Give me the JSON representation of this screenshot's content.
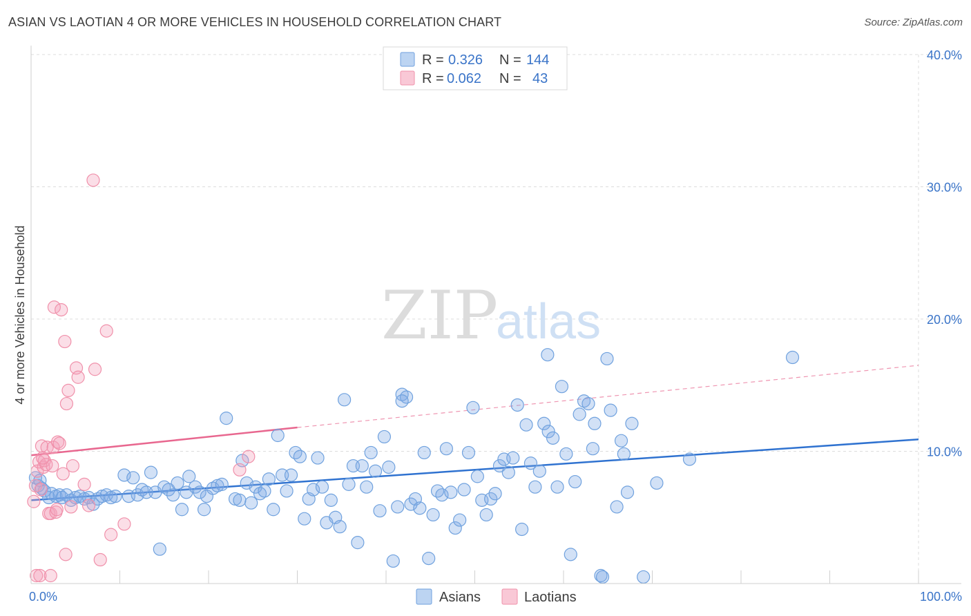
{
  "title": "ASIAN VS LAOTIAN 4 OR MORE VEHICLES IN HOUSEHOLD CORRELATION CHART",
  "source": "Source: ZipAtlas.com",
  "watermark": {
    "zip": "ZIP",
    "atlas": "atlas"
  },
  "legend": {
    "r_label": "R =",
    "n_label": "N =",
    "rows": [
      {
        "r": "0.326",
        "n": "144",
        "color": "#a9c8ee"
      },
      {
        "r": "0.062",
        "n": "43",
        "color": "#f6b9cc"
      }
    ]
  },
  "bottom_legend": [
    "Asians",
    "Laotians"
  ],
  "chart_data": {
    "type": "scatter",
    "title": "ASIAN VS LAOTIAN 4 OR MORE VEHICLES IN HOUSEHOLD CORRELATION CHART",
    "xlabel": "",
    "ylabel": "4 or more Vehicles in Household",
    "xlim": [
      0,
      100
    ],
    "ylim": [
      0,
      40
    ],
    "x_tick_labels": [
      "0.0%",
      "100.0%"
    ],
    "y_ticks": [
      10,
      20,
      30,
      40
    ],
    "y_tick_labels": [
      "10.0%",
      "20.0%",
      "30.0%",
      "40.0%"
    ],
    "grid": true,
    "legend_position": "top-center",
    "colors": {
      "asians": "#6fa1de",
      "laotians": "#f090aa",
      "asians_line": "#2f72d0",
      "laotians_line": "#e8678f"
    },
    "series": [
      {
        "name": "Asians",
        "trend": {
          "x": [
            0,
            100
          ],
          "y": [
            6.3,
            10.9
          ]
        },
        "points": [
          [
            0.5,
            8.0
          ],
          [
            0.8,
            7.4
          ],
          [
            1.0,
            7.8
          ],
          [
            1.2,
            7.2
          ],
          [
            1.5,
            7.0
          ],
          [
            2.0,
            6.5
          ],
          [
            2.3,
            6.8
          ],
          [
            2.8,
            6.6
          ],
          [
            3.2,
            6.7
          ],
          [
            3.5,
            6.5
          ],
          [
            4.0,
            6.7
          ],
          [
            4.5,
            6.3
          ],
          [
            5.0,
            6.5
          ],
          [
            5.5,
            6.6
          ],
          [
            6.0,
            6.4
          ],
          [
            6.5,
            6.5
          ],
          [
            7.0,
            6.0
          ],
          [
            7.5,
            6.4
          ],
          [
            8.0,
            6.6
          ],
          [
            8.5,
            6.7
          ],
          [
            9.0,
            6.5
          ],
          [
            9.5,
            6.6
          ],
          [
            10.5,
            8.2
          ],
          [
            11.0,
            6.6
          ],
          [
            11.5,
            8.0
          ],
          [
            12.0,
            6.7
          ],
          [
            12.5,
            7.1
          ],
          [
            13.0,
            6.9
          ],
          [
            13.5,
            8.4
          ],
          [
            14.0,
            6.9
          ],
          [
            14.5,
            2.6
          ],
          [
            15.0,
            7.3
          ],
          [
            15.5,
            7.1
          ],
          [
            16.0,
            6.7
          ],
          [
            16.5,
            7.6
          ],
          [
            17.0,
            5.6
          ],
          [
            17.5,
            6.9
          ],
          [
            17.8,
            8.1
          ],
          [
            18.5,
            7.3
          ],
          [
            19.0,
            6.9
          ],
          [
            19.5,
            5.6
          ],
          [
            19.8,
            6.6
          ],
          [
            20.5,
            7.2
          ],
          [
            21.0,
            7.4
          ],
          [
            21.5,
            7.5
          ],
          [
            22.0,
            12.5
          ],
          [
            23.0,
            6.4
          ],
          [
            23.5,
            6.3
          ],
          [
            23.8,
            9.3
          ],
          [
            24.3,
            7.6
          ],
          [
            24.8,
            6.1
          ],
          [
            25.3,
            7.3
          ],
          [
            25.8,
            6.8
          ],
          [
            26.3,
            7.0
          ],
          [
            26.8,
            7.9
          ],
          [
            27.3,
            5.6
          ],
          [
            27.8,
            11.2
          ],
          [
            28.3,
            8.2
          ],
          [
            28.8,
            7.0
          ],
          [
            29.3,
            8.2
          ],
          [
            29.8,
            9.9
          ],
          [
            30.3,
            9.6
          ],
          [
            30.8,
            4.9
          ],
          [
            31.3,
            6.4
          ],
          [
            31.8,
            7.1
          ],
          [
            32.3,
            9.5
          ],
          [
            32.8,
            7.3
          ],
          [
            33.3,
            4.6
          ],
          [
            33.8,
            6.3
          ],
          [
            34.3,
            5.0
          ],
          [
            34.8,
            4.3
          ],
          [
            35.3,
            13.9
          ],
          [
            35.8,
            7.5
          ],
          [
            36.3,
            8.9
          ],
          [
            36.8,
            3.1
          ],
          [
            37.3,
            8.9
          ],
          [
            37.8,
            7.3
          ],
          [
            38.3,
            9.9
          ],
          [
            38.8,
            8.5
          ],
          [
            39.3,
            5.5
          ],
          [
            39.8,
            11.1
          ],
          [
            40.3,
            8.8
          ],
          [
            40.8,
            1.7
          ],
          [
            41.3,
            5.8
          ],
          [
            41.8,
            14.3
          ],
          [
            42.3,
            14.1
          ],
          [
            42.8,
            6.0
          ],
          [
            43.3,
            6.4
          ],
          [
            43.8,
            5.7
          ],
          [
            44.3,
            9.9
          ],
          [
            44.8,
            1.9
          ],
          [
            45.3,
            5.2
          ],
          [
            45.8,
            7.0
          ],
          [
            46.3,
            6.7
          ],
          [
            46.8,
            10.2
          ],
          [
            47.3,
            6.9
          ],
          [
            47.8,
            4.2
          ],
          [
            48.3,
            4.8
          ],
          [
            48.8,
            7.1
          ],
          [
            49.3,
            9.9
          ],
          [
            49.8,
            13.3
          ],
          [
            50.3,
            8.1
          ],
          [
            50.8,
            6.3
          ],
          [
            51.3,
            5.2
          ],
          [
            51.8,
            6.4
          ],
          [
            52.3,
            6.8
          ],
          [
            52.8,
            8.9
          ],
          [
            53.3,
            9.4
          ],
          [
            53.8,
            8.4
          ],
          [
            54.3,
            9.5
          ],
          [
            54.8,
            13.5
          ],
          [
            55.3,
            4.1
          ],
          [
            55.8,
            12.0
          ],
          [
            56.3,
            9.1
          ],
          [
            56.8,
            7.3
          ],
          [
            57.3,
            8.5
          ],
          [
            57.8,
            12.1
          ],
          [
            58.3,
            11.5
          ],
          [
            58.8,
            11.0
          ],
          [
            59.3,
            7.3
          ],
          [
            59.8,
            14.9
          ],
          [
            60.3,
            9.8
          ],
          [
            60.8,
            2.2
          ],
          [
            61.3,
            7.7
          ],
          [
            61.8,
            12.8
          ],
          [
            62.3,
            13.8
          ],
          [
            62.8,
            13.6
          ],
          [
            63.3,
            10.2
          ],
          [
            63.5,
            12.1
          ],
          [
            64.2,
            0.6
          ],
          [
            64.4,
            0.5
          ],
          [
            64.9,
            17.0
          ],
          [
            65.3,
            13.1
          ],
          [
            66.0,
            5.8
          ],
          [
            66.5,
            10.8
          ],
          [
            66.8,
            9.8
          ],
          [
            67.2,
            6.9
          ],
          [
            67.7,
            12.1
          ],
          [
            69.0,
            0.5
          ],
          [
            70.5,
            7.6
          ],
          [
            74.2,
            9.4
          ],
          [
            85.8,
            17.1
          ],
          [
            58.2,
            17.3
          ],
          [
            41.8,
            13.8
          ]
        ]
      },
      {
        "name": "Laotians",
        "trend": {
          "x": [
            0,
            30
          ],
          "y": [
            9.7,
            11.8
          ]
        },
        "trend_extended": {
          "x": [
            30,
            100
          ],
          "y": [
            11.8,
            16.5
          ]
        },
        "points": [
          [
            0.3,
            6.2
          ],
          [
            0.5,
            7.4
          ],
          [
            0.7,
            8.5
          ],
          [
            0.9,
            9.2
          ],
          [
            1.1,
            7.1
          ],
          [
            1.2,
            10.4
          ],
          [
            1.4,
            8.8
          ],
          [
            1.5,
            9.3
          ],
          [
            1.7,
            9.0
          ],
          [
            1.8,
            10.3
          ],
          [
            2.0,
            5.3
          ],
          [
            2.2,
            5.3
          ],
          [
            2.4,
            8.9
          ],
          [
            2.5,
            10.3
          ],
          [
            2.6,
            20.9
          ],
          [
            2.8,
            5.4
          ],
          [
            2.9,
            5.6
          ],
          [
            3.0,
            10.7
          ],
          [
            3.2,
            10.6
          ],
          [
            3.4,
            20.7
          ],
          [
            3.6,
            8.3
          ],
          [
            3.8,
            18.3
          ],
          [
            3.9,
            2.2
          ],
          [
            4.0,
            13.6
          ],
          [
            4.2,
            14.6
          ],
          [
            4.5,
            5.8
          ],
          [
            4.7,
            8.9
          ],
          [
            5.1,
            16.3
          ],
          [
            5.3,
            15.6
          ],
          [
            6.0,
            7.5
          ],
          [
            6.5,
            5.9
          ],
          [
            7.0,
            30.5
          ],
          [
            7.2,
            16.2
          ],
          [
            7.8,
            1.8
          ],
          [
            8.5,
            19.1
          ],
          [
            9.0,
            3.7
          ],
          [
            10.5,
            4.5
          ],
          [
            23.5,
            8.6
          ],
          [
            24.5,
            9.6
          ],
          [
            0.6,
            0.6
          ],
          [
            1.0,
            0.6
          ],
          [
            2.2,
            0.6
          ],
          [
            1.3,
            9.5
          ]
        ]
      }
    ]
  }
}
